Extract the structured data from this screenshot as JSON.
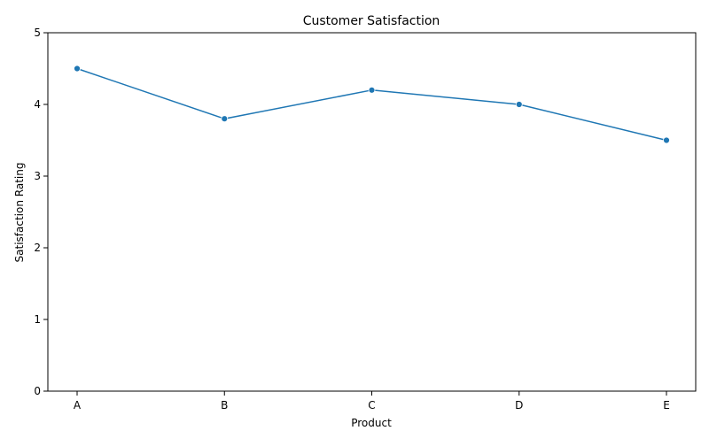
{
  "chart_data": {
    "type": "line",
    "title": "Customer Satisfaction",
    "xlabel": "Product",
    "ylabel": "Satisfaction Rating",
    "categories": [
      "A",
      "B",
      "C",
      "D",
      "E"
    ],
    "values": [
      4.5,
      3.8,
      4.2,
      4.0,
      3.5
    ],
    "ylim": [
      0,
      5
    ],
    "yticks": [
      0,
      1,
      2,
      3,
      4,
      5
    ],
    "grid": false,
    "marker": "circle",
    "line_color": "#1f77b4"
  }
}
